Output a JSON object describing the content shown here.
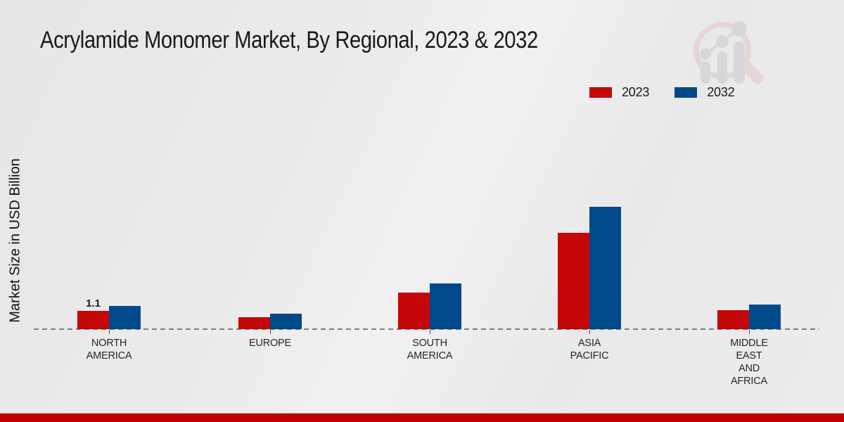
{
  "page": {
    "title": "Acrylamide Monomer Market, By Regional, 2023 & 2032",
    "y_axis_label": "Market Size in USD Billion"
  },
  "legend": {
    "items": [
      {
        "label": "2023",
        "color": "#C50707"
      },
      {
        "label": "2032",
        "color": "#00498A"
      }
    ]
  },
  "chart_data": {
    "type": "bar",
    "title": "Acrylamide Monomer Market, By Regional, 2023 & 2032",
    "ylabel": "Market Size in USD Billion",
    "xlabel": "",
    "categories": [
      "North America",
      "Europe",
      "South America",
      "Asia Pacific",
      "Middle East and Africa"
    ],
    "category_display_lines": [
      [
        "NORTH",
        "AMERICA"
      ],
      [
        "EUROPE"
      ],
      [
        "SOUTH",
        "AMERICA"
      ],
      [
        "ASIA",
        "PACIFIC"
      ],
      [
        "MIDDLE",
        "EAST",
        "AND",
        "AFRICA"
      ]
    ],
    "series": [
      {
        "name": "2023",
        "color": "#C50707",
        "values": [
          1.1,
          0.7,
          2.2,
          5.8,
          1.15
        ]
      },
      {
        "name": "2032",
        "color": "#00498A",
        "values": [
          1.4,
          0.95,
          2.75,
          7.35,
          1.5
        ]
      }
    ],
    "data_labels": [
      {
        "series_index": 0,
        "category_index": 0,
        "text": "1.1"
      }
    ],
    "ylim": [
      0,
      8
    ],
    "grid": false,
    "baseline_style": "dashed",
    "legend_position": "top-right"
  },
  "footer": {
    "accent_color": "#C00000"
  },
  "watermark": {
    "name": "market-research-future-logo"
  }
}
